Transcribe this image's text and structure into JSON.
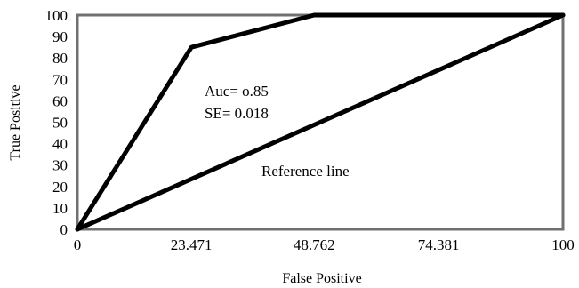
{
  "chart_data": {
    "type": "line",
    "title": "",
    "xlabel": "False Positive",
    "ylabel": "True Positive",
    "xlim": [
      0,
      100
    ],
    "ylim": [
      0,
      100
    ],
    "x_ticks": [
      {
        "value": 0,
        "label": "0"
      },
      {
        "value": 23.471,
        "label": "23.471"
      },
      {
        "value": 48.762,
        "label": "48.762"
      },
      {
        "value": 74.381,
        "label": "74.381"
      },
      {
        "value": 100,
        "label": "100"
      }
    ],
    "y_ticks": [
      {
        "value": 0,
        "label": "0"
      },
      {
        "value": 10,
        "label": "10"
      },
      {
        "value": 20,
        "label": "20"
      },
      {
        "value": 30,
        "label": "30"
      },
      {
        "value": 40,
        "label": "40"
      },
      {
        "value": 50,
        "label": "50"
      },
      {
        "value": 60,
        "label": "60"
      },
      {
        "value": 70,
        "label": "70"
      },
      {
        "value": 80,
        "label": "80"
      },
      {
        "value": 90,
        "label": "90"
      },
      {
        "value": 100,
        "label": "100"
      }
    ],
    "series": [
      {
        "x": [
          0,
          23.471,
          48.762,
          74.381,
          100
        ],
        "y": [
          0,
          85,
          100,
          100,
          100
        ],
        "color": "#000000"
      },
      {
        "name": "Reference line",
        "x": [
          0,
          100
        ],
        "y": [
          0,
          100
        ],
        "color": "#000000"
      }
    ],
    "annotations": [
      {
        "text": "Auc= o.85"
      },
      {
        "text": "SE= 0.018"
      },
      {
        "text": "Reference line"
      }
    ],
    "grid": false,
    "frame": true
  }
}
